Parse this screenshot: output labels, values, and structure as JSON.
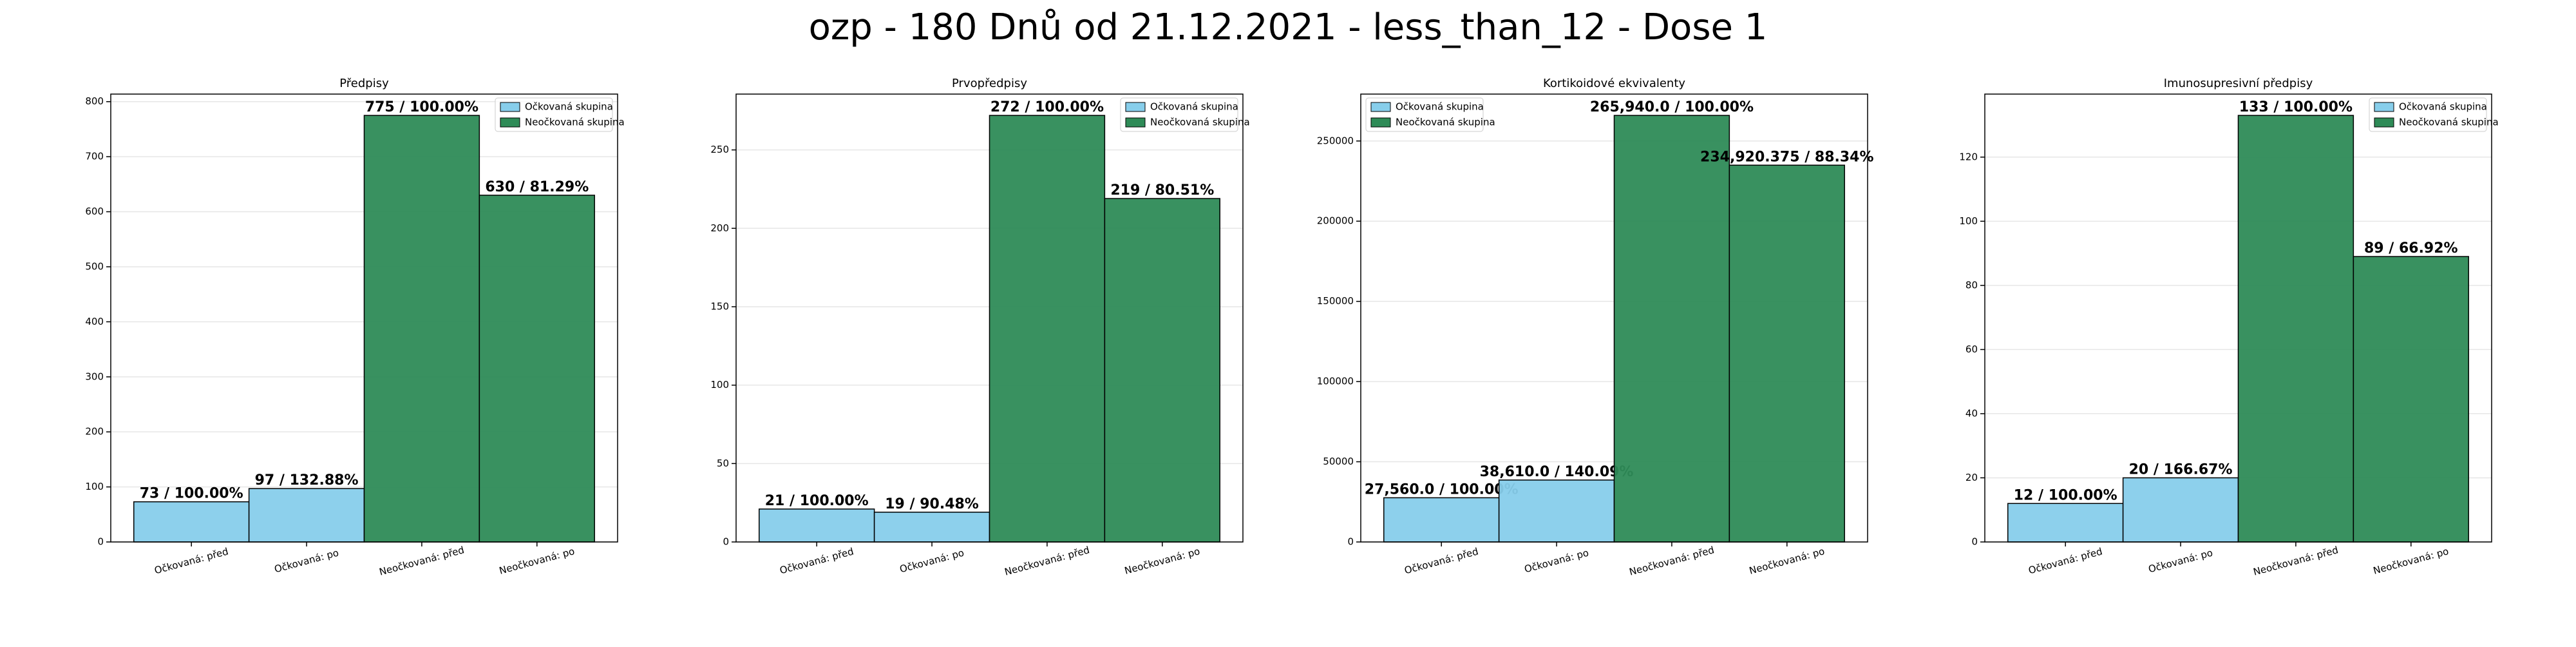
{
  "title": "ozp - 180 Dnů od 21.12.2021 - less_than_12 - Dose 1",
  "chart_data": [
    {
      "type": "bar",
      "title": "Předpisy",
      "categories": [
        "Očkovaná: před",
        "Očkovaná: po",
        "Neočkovaná: před",
        "Neočkovaná: po"
      ],
      "values": [
        73,
        97,
        775,
        630
      ],
      "value_labels": [
        "73 / 100.00%",
        "97 / 132.88%",
        "775 / 100.00%",
        "630 / 81.29%"
      ],
      "colors": [
        "#87ceeb",
        "#87ceeb",
        "#2e8b57",
        "#2e8b57"
      ],
      "legend": [
        {
          "name": "Očkovaná skupina",
          "color": "#87ceeb"
        },
        {
          "name": "Neočkovaná skupina",
          "color": "#2e8b57"
        }
      ],
      "legend_loc": "upper right",
      "grid": true,
      "ylim": [
        0,
        813.75
      ],
      "yticks": [
        0,
        100,
        200,
        300,
        400,
        500,
        600,
        700,
        800
      ]
    },
    {
      "type": "bar",
      "title": "Prvopředpisy",
      "categories": [
        "Očkovaná: před",
        "Očkovaná: po",
        "Neočkovaná: před",
        "Neočkovaná: po"
      ],
      "values": [
        21,
        19,
        272,
        219
      ],
      "value_labels": [
        "21 / 100.00%",
        "19 / 90.48%",
        "272 / 100.00%",
        "219 / 80.51%"
      ],
      "colors": [
        "#87ceeb",
        "#87ceeb",
        "#2e8b57",
        "#2e8b57"
      ],
      "legend": [
        {
          "name": "Očkovaná skupina",
          "color": "#87ceeb"
        },
        {
          "name": "Neočkovaná skupina",
          "color": "#2e8b57"
        }
      ],
      "legend_loc": "upper right",
      "grid": true,
      "ylim": [
        0,
        285.6
      ],
      "yticks": [
        0,
        50,
        100,
        150,
        200,
        250
      ]
    },
    {
      "type": "bar",
      "title": "Kortikoidové ekvivalenty",
      "categories": [
        "Očkovaná: před",
        "Očkovaná: po",
        "Neočkovaná: před",
        "Neočkovaná: po"
      ],
      "values": [
        27560,
        38610,
        265940,
        234920.375
      ],
      "value_labels": [
        "27,560.0 / 100.00%",
        "38,610.0 / 140.09%",
        "265,940.0 / 100.00%",
        "234,920.375 / 88.34%"
      ],
      "colors": [
        "#87ceeb",
        "#87ceeb",
        "#2e8b57",
        "#2e8b57"
      ],
      "legend": [
        {
          "name": "Očkovaná skupina",
          "color": "#87ceeb"
        },
        {
          "name": "Neočkovaná skupina",
          "color": "#2e8b57"
        }
      ],
      "legend_loc": "upper left",
      "grid": true,
      "ylim": [
        0,
        279237
      ],
      "yticks": [
        0,
        50000,
        100000,
        150000,
        200000,
        250000
      ]
    },
    {
      "type": "bar",
      "title": "Imunosupresivní předpisy",
      "categories": [
        "Očkovaná: před",
        "Očkovaná: po",
        "Neočkovaná: před",
        "Neočkovaná: po"
      ],
      "values": [
        12,
        20,
        133,
        89
      ],
      "value_labels": [
        "12 / 100.00%",
        "20 / 166.67%",
        "133 / 100.00%",
        "89 / 66.92%"
      ],
      "colors": [
        "#87ceeb",
        "#87ceeb",
        "#2e8b57",
        "#2e8b57"
      ],
      "legend": [
        {
          "name": "Očkovaná skupina",
          "color": "#87ceeb"
        },
        {
          "name": "Neočkovaná skupina",
          "color": "#2e8b57"
        }
      ],
      "legend_loc": "upper right",
      "grid": true,
      "ylim": [
        0,
        139.65
      ],
      "yticks": [
        0,
        20,
        40,
        60,
        80,
        100,
        120
      ]
    }
  ]
}
